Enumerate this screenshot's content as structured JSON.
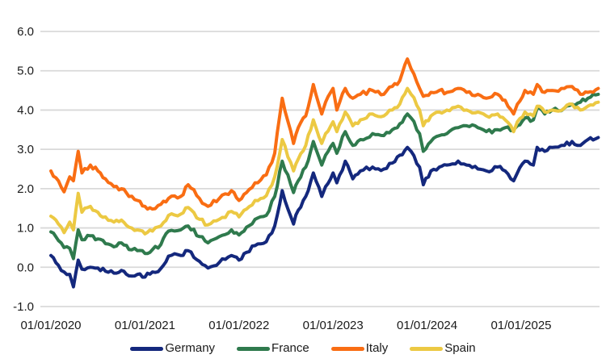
{
  "chart_data": {
    "type": "line",
    "title": "",
    "xlabel": "",
    "ylabel": "",
    "grid": "horizontal-only",
    "legend_position": "bottom",
    "ylim": [
      -1.0,
      6.0
    ],
    "xlim_years_since_2020": [
      0,
      5.83
    ],
    "y_ticks": [
      6.0,
      5.0,
      4.0,
      3.0,
      2.0,
      1.0,
      0.0,
      -1.0
    ],
    "y_tick_labels": [
      "6.0",
      "5.0",
      "4.0",
      "3.0",
      "2.0",
      "1.0",
      "0.0",
      "-1.0"
    ],
    "x_tick_positions": [
      0,
      1,
      2,
      3,
      4,
      5
    ],
    "x_tick_labels": [
      "01/01/2020",
      "01/01/2021",
      "01/01/2022",
      "01/01/2023",
      "01/01/2024",
      "01/01/2025"
    ],
    "x": [
      0.0,
      0.08,
      0.14,
      0.2,
      0.24,
      0.29,
      0.33,
      0.42,
      0.5,
      0.58,
      0.67,
      0.75,
      0.83,
      0.92,
      1.0,
      1.08,
      1.17,
      1.25,
      1.38,
      1.46,
      1.58,
      1.67,
      1.79,
      1.92,
      2.0,
      2.08,
      2.17,
      2.29,
      2.38,
      2.46,
      2.58,
      2.63,
      2.71,
      2.79,
      2.88,
      2.92,
      3.0,
      3.04,
      3.13,
      3.21,
      3.29,
      3.42,
      3.54,
      3.63,
      3.71,
      3.79,
      3.83,
      3.92,
      3.96,
      4.04,
      4.13,
      4.21,
      4.33,
      4.42,
      4.54,
      4.63,
      4.75,
      4.83,
      4.92,
      4.96,
      5.04,
      5.13,
      5.17,
      5.25,
      5.33,
      5.46,
      5.54,
      5.63,
      5.71,
      5.82
    ],
    "series": [
      {
        "name": "Germany",
        "color": "#14287d",
        "values": [
          0.3,
          0.05,
          -0.12,
          -0.18,
          -0.5,
          0.18,
          -0.05,
          0.0,
          -0.02,
          -0.1,
          -0.15,
          -0.08,
          -0.22,
          -0.18,
          -0.25,
          -0.12,
          -0.03,
          0.28,
          0.3,
          0.42,
          0.15,
          -0.02,
          0.12,
          0.3,
          0.18,
          0.38,
          0.55,
          0.65,
          1.05,
          1.95,
          1.1,
          1.45,
          1.8,
          2.4,
          1.8,
          2.05,
          2.4,
          2.15,
          2.7,
          2.25,
          2.45,
          2.55,
          2.5,
          2.65,
          2.85,
          3.05,
          2.95,
          2.55,
          2.1,
          2.45,
          2.55,
          2.6,
          2.7,
          2.6,
          2.5,
          2.45,
          2.55,
          2.45,
          2.2,
          2.4,
          2.7,
          2.6,
          3.05,
          2.95,
          3.05,
          3.1,
          3.2,
          3.1,
          3.25,
          3.3
        ]
      },
      {
        "name": "France",
        "color": "#2f7a4d",
        "values": [
          0.9,
          0.68,
          0.5,
          0.48,
          0.22,
          0.95,
          0.7,
          0.8,
          0.72,
          0.6,
          0.52,
          0.62,
          0.45,
          0.42,
          0.35,
          0.45,
          0.58,
          0.92,
          0.95,
          1.05,
          0.78,
          0.62,
          0.78,
          0.95,
          0.82,
          1.02,
          1.22,
          1.32,
          1.8,
          2.7,
          1.9,
          2.2,
          2.55,
          3.2,
          2.6,
          2.85,
          3.15,
          2.9,
          3.45,
          3.1,
          3.25,
          3.4,
          3.35,
          3.5,
          3.65,
          3.9,
          3.8,
          3.4,
          2.95,
          3.2,
          3.35,
          3.4,
          3.55,
          3.6,
          3.55,
          3.45,
          3.5,
          3.55,
          3.5,
          3.6,
          3.8,
          3.75,
          4.05,
          3.9,
          4.0,
          4.05,
          4.15,
          4.2,
          4.3,
          4.4
        ]
      },
      {
        "name": "Italy",
        "color": "#f96d13",
        "values": [
          2.45,
          2.2,
          1.92,
          2.3,
          2.2,
          2.95,
          2.4,
          2.6,
          2.45,
          2.25,
          2.05,
          2.0,
          1.8,
          1.7,
          1.55,
          1.48,
          1.6,
          1.75,
          1.8,
          2.1,
          1.75,
          1.55,
          1.75,
          1.95,
          1.7,
          1.9,
          2.15,
          2.35,
          2.9,
          4.3,
          3.15,
          3.55,
          3.85,
          4.65,
          3.9,
          4.2,
          4.55,
          4.0,
          4.55,
          4.3,
          4.4,
          4.5,
          4.4,
          4.6,
          4.75,
          5.3,
          5.05,
          4.55,
          4.35,
          4.45,
          4.5,
          4.45,
          4.55,
          4.45,
          4.4,
          4.3,
          4.4,
          4.25,
          3.9,
          4.15,
          4.5,
          4.4,
          4.65,
          4.45,
          4.5,
          4.55,
          4.6,
          4.4,
          4.45,
          4.55
        ]
      },
      {
        "name": "Spain",
        "color": "#ecc943",
        "values": [
          1.3,
          1.1,
          0.88,
          1.15,
          0.95,
          1.88,
          1.4,
          1.55,
          1.4,
          1.28,
          1.15,
          1.2,
          1.02,
          0.95,
          0.85,
          0.92,
          1.05,
          1.32,
          1.35,
          1.52,
          1.22,
          1.08,
          1.22,
          1.42,
          1.28,
          1.48,
          1.7,
          1.82,
          2.3,
          3.25,
          2.45,
          2.75,
          3.1,
          3.75,
          3.15,
          3.4,
          3.7,
          3.45,
          3.95,
          3.6,
          3.75,
          3.9,
          3.85,
          4.0,
          4.15,
          4.55,
          4.4,
          4.0,
          3.6,
          3.85,
          3.95,
          4.0,
          4.1,
          4.0,
          3.95,
          3.85,
          3.9,
          3.75,
          3.45,
          3.7,
          3.95,
          3.85,
          4.1,
          3.95,
          4.0,
          4.05,
          4.15,
          4.0,
          4.1,
          4.2
        ]
      }
    ],
    "style": {
      "grid_color": "#d9d9d9",
      "text_color": "#1a1a1a",
      "line_width": 4,
      "noise_amplitude": 0.055
    }
  }
}
